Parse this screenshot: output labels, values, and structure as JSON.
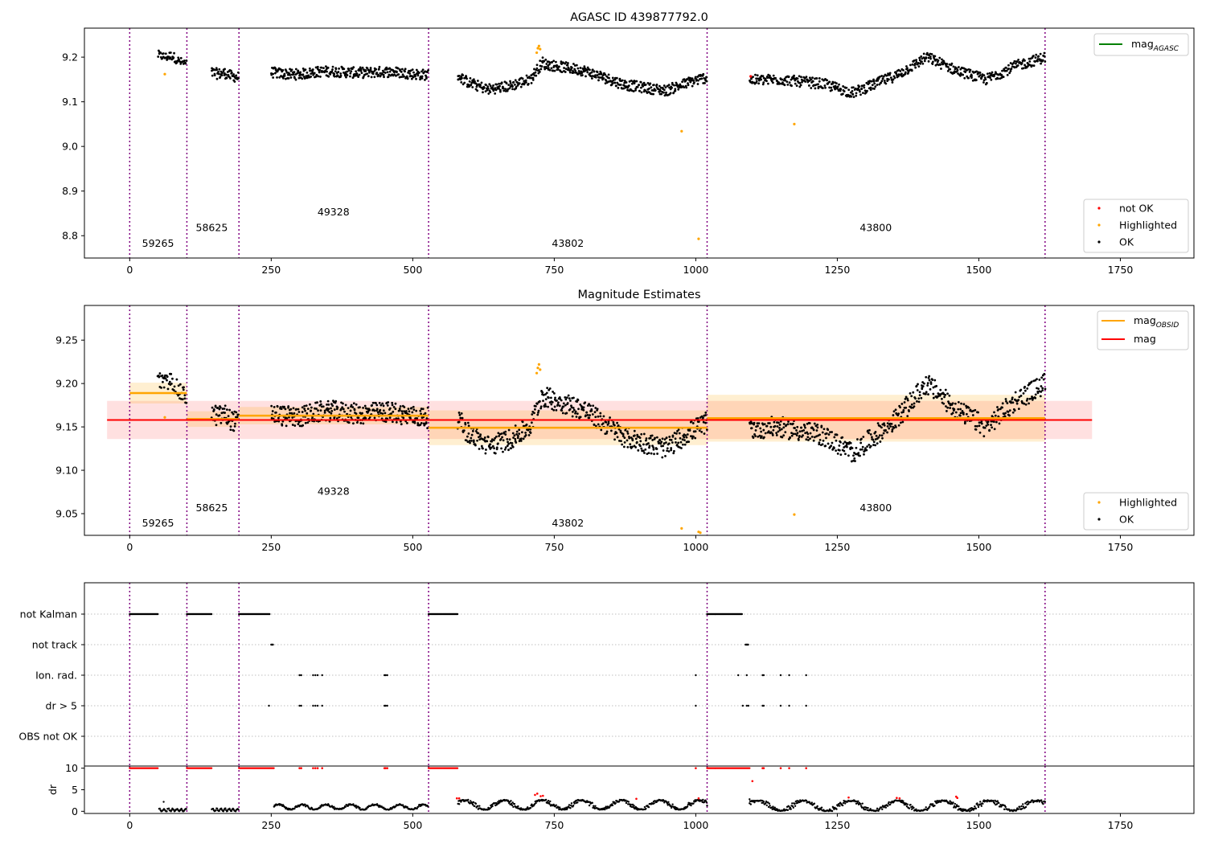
{
  "figure": {
    "title_top": "AGASC ID 439877792.0",
    "title_mid": "Magnitude Estimates"
  },
  "colors": {
    "ok": "#000000",
    "not_ok": "#ff0000",
    "highlighted": "#ffa500",
    "mag_agasc_line": "#008000",
    "mag_line": "#ff0000",
    "mag_obsid_line": "#ffa500",
    "obs_boundary": "#800080"
  },
  "chart_data": [
    {
      "type": "scatter",
      "title": "AGASC ID 439877792.0",
      "xlim": [
        -80,
        1880
      ],
      "ylim": [
        8.75,
        9.265
      ],
      "x_ticks": [
        "0",
        "250",
        "500",
        "750",
        "1000",
        "1250",
        "1500",
        "1750"
      ],
      "y_ticks": [
        "8.8",
        "8.9",
        "9.0",
        "9.1",
        "9.2"
      ],
      "obs_boundaries": [
        0,
        101,
        193,
        528,
        1020,
        1617
      ],
      "obsids": [
        {
          "label": "59265",
          "x": 50,
          "y": 8.775
        },
        {
          "label": "58625",
          "x": 145,
          "y": 8.81
        },
        {
          "label": "49328",
          "x": 360,
          "y": 8.845
        },
        {
          "label": "43802",
          "x": 774,
          "y": 8.775
        },
        {
          "label": "43800",
          "x": 1318,
          "y": 8.81
        }
      ],
      "legend_lines": [
        {
          "name": "mag",
          "sub": "AGASC",
          "color": "#008000"
        }
      ],
      "legend_points": [
        {
          "name": "not OK",
          "color": "#ff0000"
        },
        {
          "name": "Highlighted",
          "color": "#ffa500"
        },
        {
          "name": "OK",
          "color": "#000000"
        }
      ],
      "highlighted_points": [
        [
          62,
          9.162
        ],
        [
          719,
          9.21
        ],
        [
          721,
          9.22
        ],
        [
          723,
          9.225
        ],
        [
          725,
          9.218
        ],
        [
          975,
          9.034
        ],
        [
          1005,
          8.793
        ],
        [
          1174,
          9.05
        ]
      ],
      "not_ok_points": [
        [
          1097,
          9.157
        ]
      ],
      "ok_segments": [
        {
          "x0": 50,
          "x1": 100,
          "y0": 9.205,
          "y1": 9.185,
          "amp": 0.01,
          "n": 50,
          "wave": [
            [
              0.5,
              0.008
            ]
          ]
        },
        {
          "x0": 145,
          "x1": 192,
          "y0": 9.165,
          "y1": 9.155,
          "amp": 0.012,
          "n": 55,
          "wave": [
            [
              0.5,
              0.004
            ]
          ]
        },
        {
          "x0": 250,
          "x1": 527,
          "y0": 9.168,
          "y1": 9.16,
          "amp": 0.012,
          "n": 330,
          "wave": [
            [
              0.15,
              -0.006
            ],
            [
              0.35,
              0.004
            ],
            [
              0.55,
              0.0
            ],
            [
              0.75,
              0.005
            ]
          ]
        },
        {
          "x0": 580,
          "x1": 730,
          "y0": 9.16,
          "y1": 9.19,
          "amp": 0.012,
          "n": 170,
          "wave": [
            [
              0.1,
              9.145
            ],
            [
              0.35,
              9.128
            ],
            [
              0.6,
              9.135
            ],
            [
              0.85,
              9.15
            ]
          ]
        },
        {
          "x0": 730,
          "x1": 1020,
          "y0": 9.185,
          "y1": 9.155,
          "amp": 0.012,
          "n": 340,
          "wave": [
            [
              0.25,
              9.17
            ],
            [
              0.5,
              9.138
            ],
            [
              0.75,
              9.125
            ],
            [
              0.9,
              9.145
            ]
          ]
        },
        {
          "x0": 1095,
          "x1": 1617,
          "y0": 9.148,
          "y1": 9.2,
          "amp": 0.012,
          "n": 560,
          "wave": [
            [
              0.1,
              9.15
            ],
            [
              0.25,
              9.14
            ],
            [
              0.35,
              9.12
            ],
            [
              0.5,
              9.16
            ],
            [
              0.6,
              9.2
            ],
            [
              0.7,
              9.17
            ],
            [
              0.8,
              9.15
            ],
            [
              0.9,
              9.18
            ]
          ]
        }
      ]
    },
    {
      "type": "scatter",
      "title": "Magnitude Estimates",
      "xlim": [
        -80,
        1880
      ],
      "ylim": [
        9.025,
        9.29
      ],
      "x_ticks": [
        "0",
        "250",
        "500",
        "750",
        "1000",
        "1250",
        "1500",
        "1750"
      ],
      "y_ticks": [
        "9.05",
        "9.10",
        "9.15",
        "9.20",
        "9.25"
      ],
      "obs_boundaries": [
        0,
        101,
        193,
        528,
        1020,
        1617
      ],
      "obsids": [
        {
          "label": "59265",
          "x": 50,
          "y": 9.035
        },
        {
          "label": "58625",
          "x": 145,
          "y": 9.053
        },
        {
          "label": "49328",
          "x": 360,
          "y": 9.072
        },
        {
          "label": "43802",
          "x": 774,
          "y": 9.035
        },
        {
          "label": "43800",
          "x": 1318,
          "y": 9.053
        }
      ],
      "mag": 9.158,
      "mag_std": 0.022,
      "mag_xrange": [
        -40,
        1700
      ],
      "mag_obsid": [
        {
          "x0": 0,
          "x1": 101,
          "mag": 9.189,
          "std": 0.012
        },
        {
          "x0": 101,
          "x1": 193,
          "mag": 9.159,
          "std": 0.009
        },
        {
          "x0": 193,
          "x1": 528,
          "mag": 9.163,
          "std": 0.01
        },
        {
          "x0": 528,
          "x1": 1020,
          "mag": 9.149,
          "std": 0.02
        },
        {
          "x0": 1020,
          "x1": 1617,
          "mag": 9.16,
          "std": 0.027
        }
      ],
      "legend_lines": [
        {
          "name": "mag",
          "sub": "OBSID",
          "color": "#ffa500"
        },
        {
          "name": "mag",
          "sub": "",
          "color": "#ff0000"
        }
      ],
      "legend_points": [
        {
          "name": "Highlighted",
          "color": "#ffa500"
        },
        {
          "name": "OK",
          "color": "#000000"
        }
      ],
      "highlighted_points": [
        [
          62,
          9.161
        ],
        [
          719,
          9.212
        ],
        [
          721,
          9.218
        ],
        [
          723,
          9.222
        ],
        [
          725,
          9.216
        ],
        [
          975,
          9.033
        ],
        [
          1005,
          9.029
        ],
        [
          1008,
          9.028
        ],
        [
          1174,
          9.049
        ]
      ],
      "ok_segments": [
        {
          "x0": 50,
          "x1": 100,
          "y0": 9.205,
          "y1": 9.185,
          "amp": 0.01,
          "n": 50,
          "wave": [
            [
              0.5,
              0.008
            ]
          ]
        },
        {
          "x0": 145,
          "x1": 192,
          "y0": 9.165,
          "y1": 9.155,
          "amp": 0.012,
          "n": 55,
          "wave": [
            [
              0.5,
              0.004
            ]
          ]
        },
        {
          "x0": 250,
          "x1": 527,
          "y0": 9.168,
          "y1": 9.16,
          "amp": 0.012,
          "n": 330,
          "wave": [
            [
              0.15,
              -0.006
            ],
            [
              0.35,
              0.004
            ],
            [
              0.55,
              0.0
            ],
            [
              0.75,
              0.005
            ]
          ]
        },
        {
          "x0": 580,
          "x1": 730,
          "y0": 9.16,
          "y1": 9.19,
          "amp": 0.012,
          "n": 170,
          "wave": [
            [
              0.1,
              9.145
            ],
            [
              0.35,
              9.128
            ],
            [
              0.6,
              9.135
            ],
            [
              0.85,
              9.15
            ]
          ]
        },
        {
          "x0": 730,
          "x1": 1020,
          "y0": 9.185,
          "y1": 9.155,
          "amp": 0.012,
          "n": 340,
          "wave": [
            [
              0.25,
              9.17
            ],
            [
              0.5,
              9.138
            ],
            [
              0.75,
              9.125
            ],
            [
              0.9,
              9.145
            ]
          ]
        },
        {
          "x0": 1095,
          "x1": 1617,
          "y0": 9.148,
          "y1": 9.2,
          "amp": 0.012,
          "n": 560,
          "wave": [
            [
              0.1,
              9.15
            ],
            [
              0.25,
              9.14
            ],
            [
              0.35,
              9.12
            ],
            [
              0.5,
              9.16
            ],
            [
              0.6,
              9.2
            ],
            [
              0.7,
              9.17
            ],
            [
              0.8,
              9.15
            ],
            [
              0.9,
              9.18
            ]
          ]
        }
      ]
    },
    {
      "type": "scatter",
      "xlim": [
        -80,
        1880
      ],
      "flag_labels": [
        "not Kalman",
        "not track",
        "Ion. rad.",
        "dr > 5",
        "OBS not OK"
      ],
      "obs_boundaries": [
        0,
        101,
        193,
        528,
        1020,
        1617
      ],
      "flag_ranges": {
        "not Kalman": [
          [
            0,
            50
          ],
          [
            101,
            145
          ],
          [
            193,
            248
          ],
          [
            528,
            580
          ],
          [
            1020,
            1082
          ]
        ],
        "not track": [
          [
            250,
            254
          ],
          [
            1088,
            1093
          ]
        ]
      },
      "flag_points": {
        "Ion. rad.": [
          300,
          303,
          324,
          328,
          332,
          340,
          450,
          452,
          455,
          1000,
          1075,
          1090,
          1118,
          1120,
          1150,
          1165,
          1195
        ],
        "dr > 5": [
          246,
          300,
          303,
          324,
          328,
          332,
          340,
          450,
          452,
          455,
          1000,
          1083,
          1090,
          1093,
          1118,
          1120,
          1150,
          1165,
          1195
        ]
      }
    },
    {
      "type": "scatter",
      "ylabel": "dr",
      "xlim": [
        -80,
        1880
      ],
      "ylim": [
        -0.5,
        10.5
      ],
      "x_ticks": [
        "0",
        "250",
        "500",
        "750",
        "1000",
        "1250",
        "1500",
        "1750"
      ],
      "y_ticks": [
        "0",
        "5",
        "10"
      ],
      "obs_boundaries": [
        0,
        101,
        193,
        528,
        1020,
        1617
      ],
      "red_capped_ranges": [
        [
          0,
          50
        ],
        [
          101,
          145
        ],
        [
          193,
          255
        ],
        [
          528,
          580
        ],
        [
          1020,
          1095
        ]
      ],
      "red_capped_points": [
        300,
        303,
        324,
        328,
        332,
        340,
        450,
        452,
        455,
        1000,
        1118,
        1120,
        1150,
        1165,
        1195
      ],
      "red_low_points": [
        [
          578,
          3.0
        ],
        [
          582,
          3.0
        ],
        [
          716,
          3.8
        ],
        [
          720,
          4.1
        ],
        [
          726,
          3.5
        ],
        [
          730,
          3.6
        ],
        [
          895,
          2.9
        ],
        [
          1005,
          3.0
        ],
        [
          1100,
          7.0
        ],
        [
          1270,
          3.2
        ],
        [
          1355,
          3.1
        ],
        [
          1360,
          3.0
        ],
        [
          1460,
          3.4
        ],
        [
          1462,
          3.1
        ]
      ],
      "ok_segments": [
        {
          "x0": 52,
          "x1": 100,
          "base": 0.3,
          "amp": 0.3,
          "n": 40
        },
        {
          "x0": 145,
          "x1": 192,
          "base": 0.3,
          "amp": 0.3,
          "n": 40
        },
        {
          "x0": 255,
          "x1": 527,
          "base": 1.0,
          "amp": 0.6,
          "n": 240
        },
        {
          "x0": 580,
          "x1": 1020,
          "base": 1.5,
          "amp": 1.1,
          "n": 420
        },
        {
          "x0": 1095,
          "x1": 1617,
          "base": 1.3,
          "amp": 1.2,
          "n": 480
        }
      ],
      "ok_extra_points": [
        [
          60,
          2.2
        ],
        [
          1095,
          2.8
        ]
      ]
    }
  ]
}
